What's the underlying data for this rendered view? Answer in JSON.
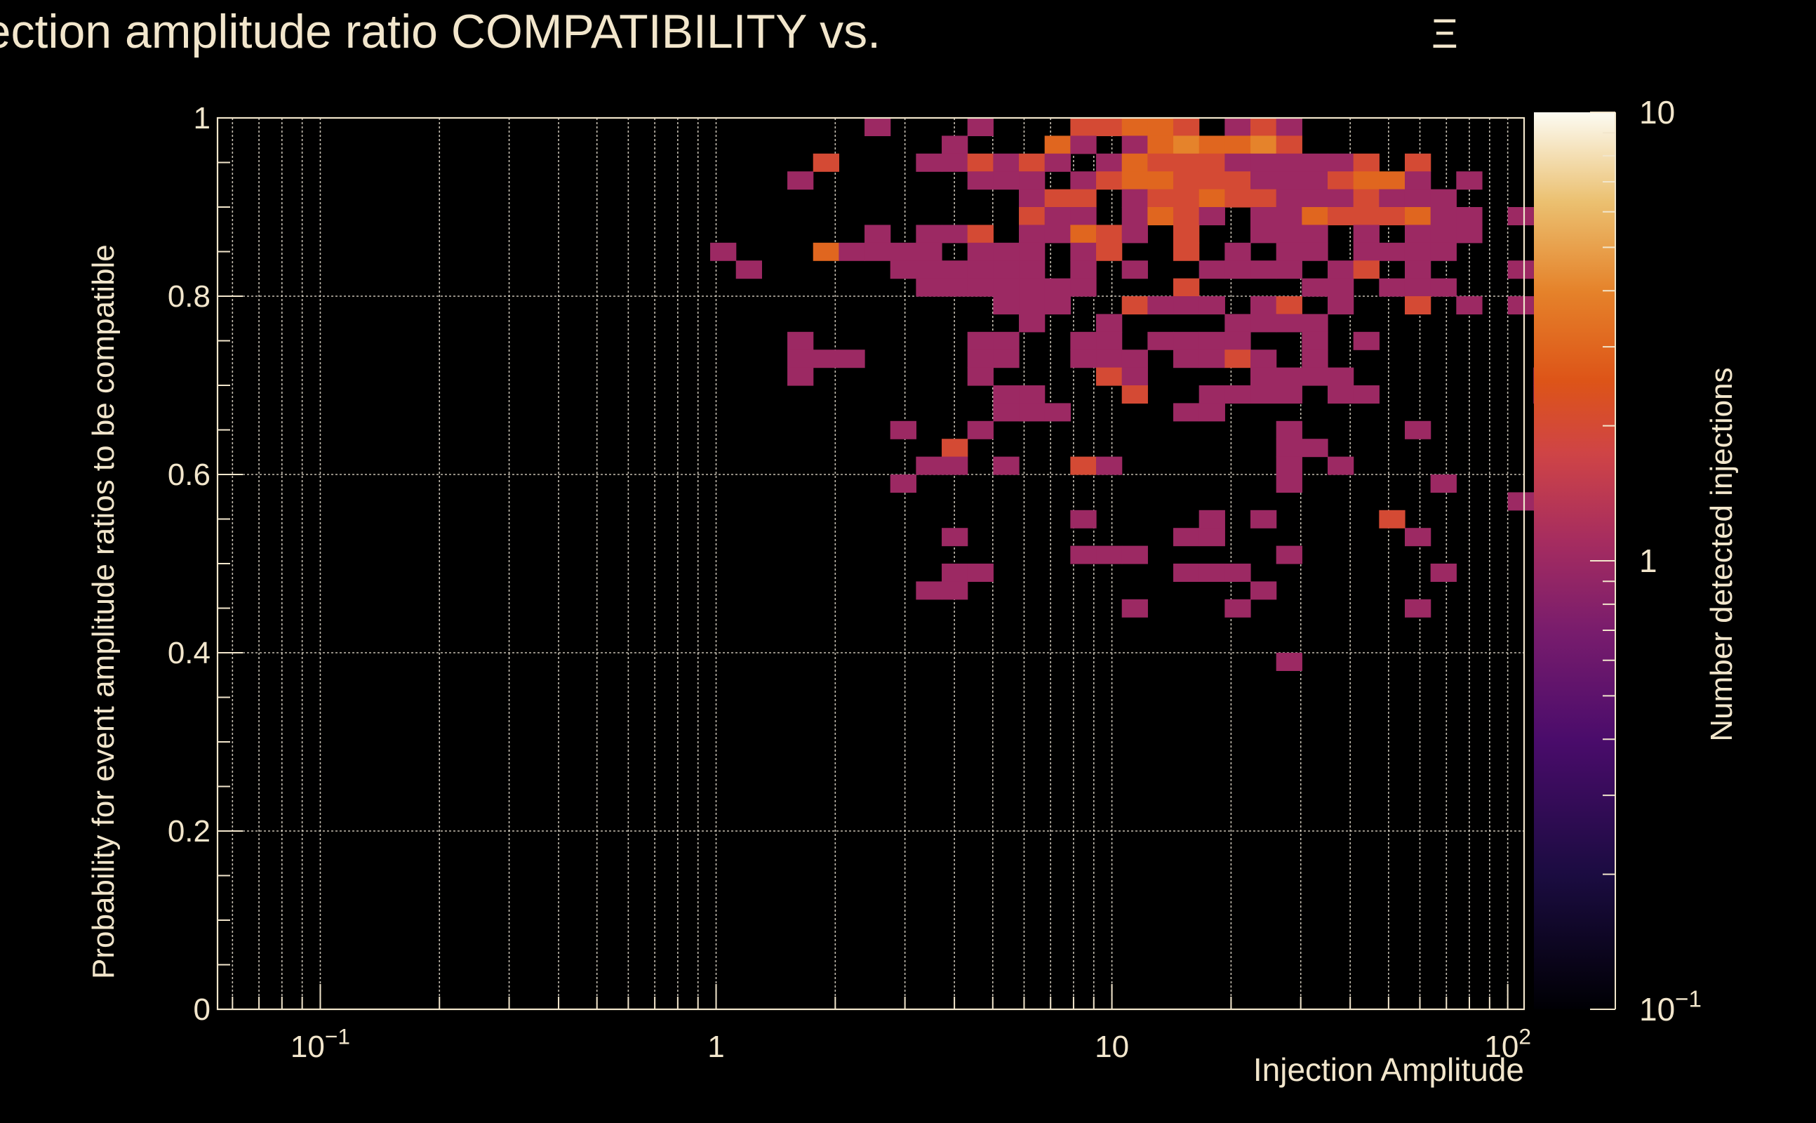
{
  "chart_data": {
    "type": "heatmap",
    "title": "Injection amplitude ratio COMPATIBILITY vs.",
    "title_symbol": "Ξ",
    "xlabel": "Injection Amplitude",
    "ylabel": "Probability for event amplitude ratios to be compatible",
    "colorbar_label": "Number detected injections",
    "x_scale": "log",
    "xlim": [
      0.055,
      110
    ],
    "ylim": [
      0,
      1
    ],
    "z_scale": "log",
    "zlim": [
      0.1,
      10
    ],
    "x_tick_labels": [
      {
        "value": 0.1,
        "base": "10",
        "exp": "−1"
      },
      {
        "value": 1,
        "base": "1",
        "exp": ""
      },
      {
        "value": 10,
        "base": "10",
        "exp": ""
      },
      {
        "value": 100,
        "base": "10",
        "exp": "2"
      }
    ],
    "y_tick_labels": [
      {
        "value": 0,
        "label": "0"
      },
      {
        "value": 0.2,
        "label": "0.2"
      },
      {
        "value": 0.4,
        "label": "0.4"
      },
      {
        "value": 0.6,
        "label": "0.6"
      },
      {
        "value": 0.8,
        "label": "0.8"
      },
      {
        "value": 1,
        "label": "1"
      }
    ],
    "colorbar_tick_labels": [
      {
        "value": 10,
        "base": "10",
        "exp": ""
      },
      {
        "value": 1,
        "base": "1",
        "exp": ""
      },
      {
        "value": 0.1,
        "base": "10",
        "exp": "−1"
      }
    ],
    "bins": {
      "x_edges_log10": [
        -1.25,
        2.0
      ],
      "n_x": 50,
      "n_y": 50
    },
    "cells": [
      [
        25,
        0,
        1
      ],
      [
        29,
        0,
        1
      ],
      [
        33,
        0,
        2
      ],
      [
        34,
        0,
        2
      ],
      [
        35,
        0,
        3
      ],
      [
        36,
        0,
        3
      ],
      [
        37,
        0,
        2
      ],
      [
        39,
        0,
        1
      ],
      [
        40,
        0,
        2
      ],
      [
        41,
        0,
        1
      ],
      [
        28,
        1,
        1
      ],
      [
        32,
        1,
        3
      ],
      [
        33,
        1,
        1
      ],
      [
        35,
        1,
        1
      ],
      [
        36,
        1,
        3
      ],
      [
        37,
        1,
        4
      ],
      [
        38,
        1,
        3
      ],
      [
        39,
        1,
        3
      ],
      [
        40,
        1,
        4
      ],
      [
        41,
        1,
        2
      ],
      [
        23,
        2,
        2
      ],
      [
        27,
        2,
        1
      ],
      [
        28,
        2,
        1
      ],
      [
        29,
        2,
        2
      ],
      [
        30,
        2,
        1
      ],
      [
        31,
        2,
        2
      ],
      [
        32,
        2,
        1
      ],
      [
        34,
        2,
        1
      ],
      [
        35,
        2,
        3
      ],
      [
        36,
        2,
        2
      ],
      [
        37,
        2,
        2
      ],
      [
        38,
        2,
        2
      ],
      [
        39,
        2,
        1
      ],
      [
        40,
        2,
        1
      ],
      [
        41,
        2,
        1
      ],
      [
        42,
        2,
        1
      ],
      [
        43,
        2,
        1
      ],
      [
        44,
        2,
        2
      ],
      [
        46,
        2,
        2
      ],
      [
        22,
        3,
        1
      ],
      [
        29,
        3,
        1
      ],
      [
        30,
        3,
        1
      ],
      [
        31,
        3,
        1
      ],
      [
        33,
        3,
        1
      ],
      [
        34,
        3,
        2
      ],
      [
        35,
        3,
        3
      ],
      [
        36,
        3,
        3
      ],
      [
        37,
        3,
        2
      ],
      [
        38,
        3,
        2
      ],
      [
        39,
        3,
        2
      ],
      [
        40,
        3,
        1
      ],
      [
        41,
        3,
        1
      ],
      [
        42,
        3,
        1
      ],
      [
        43,
        3,
        2
      ],
      [
        44,
        3,
        3
      ],
      [
        45,
        3,
        3
      ],
      [
        46,
        3,
        1
      ],
      [
        48,
        3,
        1
      ],
      [
        31,
        4,
        1
      ],
      [
        32,
        4,
        2
      ],
      [
        33,
        4,
        2
      ],
      [
        35,
        4,
        1
      ],
      [
        36,
        4,
        2
      ],
      [
        37,
        4,
        2
      ],
      [
        38,
        4,
        3
      ],
      [
        39,
        4,
        2
      ],
      [
        40,
        4,
        2
      ],
      [
        41,
        4,
        1
      ],
      [
        42,
        4,
        1
      ],
      [
        43,
        4,
        1
      ],
      [
        44,
        4,
        2
      ],
      [
        45,
        4,
        1
      ],
      [
        46,
        4,
        1
      ],
      [
        47,
        4,
        1
      ],
      [
        31,
        5,
        2
      ],
      [
        32,
        5,
        1
      ],
      [
        33,
        5,
        1
      ],
      [
        35,
        5,
        1
      ],
      [
        36,
        5,
        3
      ],
      [
        37,
        5,
        2
      ],
      [
        38,
        5,
        1
      ],
      [
        40,
        5,
        1
      ],
      [
        41,
        5,
        1
      ],
      [
        42,
        5,
        3
      ],
      [
        43,
        5,
        2
      ],
      [
        44,
        5,
        2
      ],
      [
        45,
        5,
        2
      ],
      [
        46,
        5,
        3
      ],
      [
        47,
        5,
        1
      ],
      [
        48,
        5,
        1
      ],
      [
        50,
        5,
        1
      ],
      [
        25,
        6,
        1
      ],
      [
        27,
        6,
        1
      ],
      [
        28,
        6,
        1
      ],
      [
        29,
        6,
        2
      ],
      [
        31,
        6,
        1
      ],
      [
        32,
        6,
        1
      ],
      [
        33,
        6,
        3
      ],
      [
        34,
        6,
        2
      ],
      [
        35,
        6,
        1
      ],
      [
        37,
        6,
        2
      ],
      [
        40,
        6,
        1
      ],
      [
        41,
        6,
        1
      ],
      [
        42,
        6,
        1
      ],
      [
        44,
        6,
        1
      ],
      [
        46,
        6,
        1
      ],
      [
        47,
        6,
        1
      ],
      [
        48,
        6,
        1
      ],
      [
        19,
        7,
        1
      ],
      [
        23,
        7,
        3
      ],
      [
        24,
        7,
        1
      ],
      [
        25,
        7,
        1
      ],
      [
        26,
        7,
        1
      ],
      [
        27,
        7,
        1
      ],
      [
        29,
        7,
        1
      ],
      [
        30,
        7,
        1
      ],
      [
        31,
        7,
        1
      ],
      [
        33,
        7,
        1
      ],
      [
        34,
        7,
        2
      ],
      [
        37,
        7,
        2
      ],
      [
        39,
        7,
        1
      ],
      [
        41,
        7,
        1
      ],
      [
        42,
        7,
        1
      ],
      [
        44,
        7,
        1
      ],
      [
        45,
        7,
        1
      ],
      [
        46,
        7,
        1
      ],
      [
        47,
        7,
        1
      ],
      [
        20,
        8,
        1
      ],
      [
        26,
        8,
        1
      ],
      [
        27,
        8,
        1
      ],
      [
        28,
        8,
        1
      ],
      [
        29,
        8,
        1
      ],
      [
        30,
        8,
        1
      ],
      [
        31,
        8,
        1
      ],
      [
        33,
        8,
        1
      ],
      [
        35,
        8,
        1
      ],
      [
        38,
        8,
        1
      ],
      [
        39,
        8,
        1
      ],
      [
        40,
        8,
        1
      ],
      [
        41,
        8,
        1
      ],
      [
        43,
        8,
        1
      ],
      [
        44,
        8,
        2
      ],
      [
        46,
        8,
        1
      ],
      [
        50,
        8,
        1
      ],
      [
        27,
        9,
        1
      ],
      [
        28,
        9,
        1
      ],
      [
        29,
        9,
        1
      ],
      [
        30,
        9,
        1
      ],
      [
        31,
        9,
        1
      ],
      [
        32,
        9,
        1
      ],
      [
        33,
        9,
        1
      ],
      [
        37,
        9,
        2
      ],
      [
        42,
        9,
        1
      ],
      [
        43,
        9,
        1
      ],
      [
        45,
        9,
        1
      ],
      [
        46,
        9,
        1
      ],
      [
        47,
        9,
        1
      ],
      [
        30,
        10,
        1
      ],
      [
        31,
        10,
        1
      ],
      [
        32,
        10,
        1
      ],
      [
        35,
        10,
        2
      ],
      [
        36,
        10,
        1
      ],
      [
        37,
        10,
        1
      ],
      [
        38,
        10,
        1
      ],
      [
        40,
        10,
        1
      ],
      [
        41,
        10,
        2
      ],
      [
        43,
        10,
        1
      ],
      [
        46,
        10,
        2
      ],
      [
        48,
        10,
        1
      ],
      [
        50,
        10,
        1
      ],
      [
        31,
        11,
        1
      ],
      [
        34,
        11,
        1
      ],
      [
        39,
        11,
        1
      ],
      [
        40,
        11,
        1
      ],
      [
        41,
        11,
        1
      ],
      [
        42,
        11,
        1
      ],
      [
        22,
        12,
        1
      ],
      [
        29,
        12,
        1
      ],
      [
        30,
        12,
        1
      ],
      [
        33,
        12,
        1
      ],
      [
        34,
        12,
        1
      ],
      [
        36,
        12,
        1
      ],
      [
        37,
        12,
        1
      ],
      [
        38,
        12,
        1
      ],
      [
        39,
        12,
        1
      ],
      [
        42,
        12,
        1
      ],
      [
        44,
        12,
        1
      ],
      [
        22,
        13,
        1
      ],
      [
        23,
        13,
        1
      ],
      [
        24,
        13,
        1
      ],
      [
        29,
        13,
        1
      ],
      [
        30,
        13,
        1
      ],
      [
        33,
        13,
        1
      ],
      [
        34,
        13,
        1
      ],
      [
        35,
        13,
        1
      ],
      [
        37,
        13,
        1
      ],
      [
        38,
        13,
        1
      ],
      [
        39,
        13,
        2
      ],
      [
        40,
        13,
        1
      ],
      [
        42,
        13,
        1
      ],
      [
        22,
        14,
        1
      ],
      [
        29,
        14,
        1
      ],
      [
        34,
        14,
        2
      ],
      [
        35,
        14,
        1
      ],
      [
        40,
        14,
        1
      ],
      [
        41,
        14,
        1
      ],
      [
        42,
        14,
        1
      ],
      [
        43,
        14,
        1
      ],
      [
        51,
        14,
        1
      ],
      [
        30,
        15,
        1
      ],
      [
        31,
        15,
        1
      ],
      [
        35,
        15,
        2
      ],
      [
        38,
        15,
        1
      ],
      [
        39,
        15,
        1
      ],
      [
        40,
        15,
        1
      ],
      [
        41,
        15,
        1
      ],
      [
        43,
        15,
        1
      ],
      [
        44,
        15,
        1
      ],
      [
        51,
        15,
        1
      ],
      [
        30,
        16,
        1
      ],
      [
        31,
        16,
        1
      ],
      [
        32,
        16,
        1
      ],
      [
        37,
        16,
        1
      ],
      [
        38,
        16,
        1
      ],
      [
        26,
        17,
        1
      ],
      [
        29,
        17,
        1
      ],
      [
        41,
        17,
        1
      ],
      [
        46,
        17,
        1
      ],
      [
        53,
        17,
        1
      ],
      [
        28,
        18,
        2
      ],
      [
        41,
        18,
        1
      ],
      [
        42,
        18,
        1
      ],
      [
        27,
        19,
        1
      ],
      [
        28,
        19,
        1
      ],
      [
        30,
        19,
        1
      ],
      [
        33,
        19,
        2
      ],
      [
        34,
        19,
        1
      ],
      [
        41,
        19,
        1
      ],
      [
        43,
        19,
        1
      ],
      [
        26,
        20,
        1
      ],
      [
        41,
        20,
        1
      ],
      [
        47,
        20,
        1
      ],
      [
        50,
        21,
        1
      ],
      [
        51,
        21,
        1
      ],
      [
        33,
        22,
        1
      ],
      [
        38,
        22,
        1
      ],
      [
        40,
        22,
        1
      ],
      [
        45,
        22,
        2
      ],
      [
        28,
        23,
        1
      ],
      [
        37,
        23,
        1
      ],
      [
        38,
        23,
        1
      ],
      [
        46,
        23,
        1
      ],
      [
        33,
        24,
        1
      ],
      [
        34,
        24,
        1
      ],
      [
        35,
        24,
        1
      ],
      [
        41,
        24,
        1
      ],
      [
        28,
        25,
        1
      ],
      [
        29,
        25,
        1
      ],
      [
        37,
        25,
        1
      ],
      [
        38,
        25,
        1
      ],
      [
        39,
        25,
        1
      ],
      [
        47,
        25,
        1
      ],
      [
        27,
        26,
        1
      ],
      [
        28,
        26,
        1
      ],
      [
        40,
        26,
        1
      ],
      [
        35,
        27,
        1
      ],
      [
        39,
        27,
        1
      ],
      [
        46,
        27,
        1
      ],
      [
        41,
        30,
        1
      ]
    ]
  }
}
